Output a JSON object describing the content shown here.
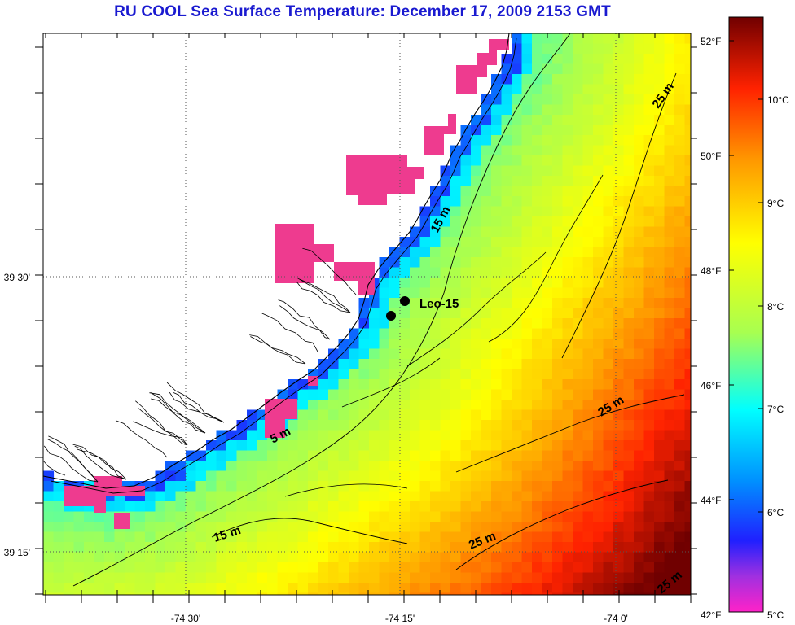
{
  "title": "RU COOL  Sea Surface Temperature:  December 17, 2009 2153 GMT",
  "map": {
    "lon_labels": [
      "-74 30'",
      "-74 15'",
      "-74 0'"
    ],
    "lat_labels": [
      "39 30'",
      "39 15'"
    ],
    "station": {
      "name": "Leo-15"
    },
    "isobath_labels": [
      "5 m",
      "15 m",
      "15 m",
      "25 m",
      "25 m",
      "25 m",
      "25 m"
    ],
    "colors": {
      "land": "#ffffff",
      "no_data_cloud": "#ee3b8f",
      "coast_lines": "#000000",
      "grid": "#555555"
    }
  },
  "colorbar": {
    "fahrenheit_labels": [
      "52°F",
      "50°F",
      "48°F",
      "46°F",
      "44°F",
      "42°F"
    ],
    "celsius_labels": [
      "10°C",
      "9°C",
      "8°C",
      "7°C",
      "6°C",
      "5°C"
    ],
    "range_c": [
      5,
      11
    ],
    "colors": [
      "#ff22c8",
      "#3322ff",
      "#00a0ff",
      "#00ffff",
      "#a8ff50",
      "#ffff00",
      "#ff9800",
      "#ff2200",
      "#b00000",
      "#700000"
    ]
  },
  "chart_data": {
    "type": "heatmap",
    "title": "RU COOL  Sea Surface Temperature:  December 17, 2009 2153 GMT",
    "units": "°C",
    "value_range": [
      5,
      11
    ],
    "x_ticks": [
      "-74 30'",
      "-74 15'",
      "-74 0'"
    ],
    "y_ticks": [
      "39 30'",
      "39 15'"
    ],
    "annotations": [
      "Leo-15",
      "5 m",
      "15 m",
      "25 m"
    ]
  }
}
